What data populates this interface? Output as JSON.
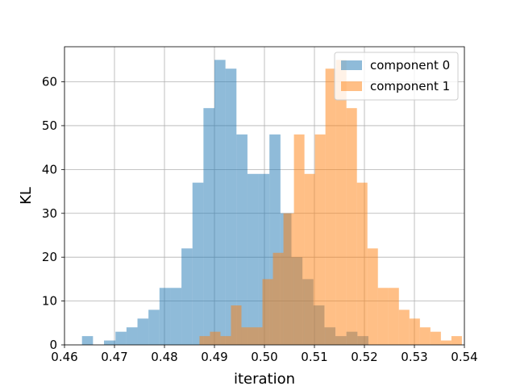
{
  "chart_data": {
    "type": "histogram",
    "title": "",
    "xlabel": "iteration",
    "ylabel": "KL",
    "xlim": [
      0.46,
      0.54
    ],
    "ylim": [
      0,
      68
    ],
    "xticks": [
      0.46,
      0.47,
      0.48,
      0.49,
      0.5,
      0.51,
      0.52,
      0.53,
      0.54
    ],
    "xtick_labels": [
      "0.46",
      "0.47",
      "0.48",
      "0.49",
      "0.50",
      "0.51",
      "0.52",
      "0.53",
      "0.54"
    ],
    "yticks": [
      0,
      10,
      20,
      30,
      40,
      50,
      60
    ],
    "ytick_labels": [
      "0",
      "10",
      "20",
      "30",
      "40",
      "50",
      "60"
    ],
    "grid": true,
    "legend_position": "top-right",
    "series": [
      {
        "name": "component 0",
        "color": "#1f77b4",
        "opacity": 0.5,
        "bins": [
          [
            0.4635,
            0.4657,
            2
          ],
          [
            0.4679,
            0.4702,
            1
          ],
          [
            0.4702,
            0.4724,
            3
          ],
          [
            0.4724,
            0.4746,
            4
          ],
          [
            0.4746,
            0.4768,
            6
          ],
          [
            0.4768,
            0.479,
            8
          ],
          [
            0.479,
            0.4812,
            13
          ],
          [
            0.4812,
            0.4834,
            13
          ],
          [
            0.4834,
            0.4856,
            22
          ],
          [
            0.4856,
            0.4878,
            37
          ],
          [
            0.4878,
            0.49,
            54
          ],
          [
            0.49,
            0.4922,
            65
          ],
          [
            0.4922,
            0.4944,
            63
          ],
          [
            0.4944,
            0.4966,
            48
          ],
          [
            0.4966,
            0.4988,
            39
          ],
          [
            0.4988,
            0.501,
            39
          ],
          [
            0.501,
            0.5032,
            48
          ],
          [
            0.5032,
            0.5054,
            30
          ],
          [
            0.5054,
            0.5076,
            20
          ],
          [
            0.5076,
            0.5098,
            15
          ],
          [
            0.5098,
            0.512,
            9
          ],
          [
            0.512,
            0.5142,
            4
          ],
          [
            0.5142,
            0.5164,
            2
          ],
          [
            0.5164,
            0.5186,
            3
          ],
          [
            0.5186,
            0.5208,
            2
          ]
        ]
      },
      {
        "name": "component 1",
        "color": "#ff7f0e",
        "opacity": 0.5,
        "bins": [
          [
            0.487,
            0.4891,
            2
          ],
          [
            0.4891,
            0.4912,
            3
          ],
          [
            0.4912,
            0.4933,
            2
          ],
          [
            0.4933,
            0.4954,
            9
          ],
          [
            0.4954,
            0.4975,
            4
          ],
          [
            0.4975,
            0.4996,
            4
          ],
          [
            0.4996,
            0.5017,
            15
          ],
          [
            0.5017,
            0.5038,
            21
          ],
          [
            0.5038,
            0.5059,
            30
          ],
          [
            0.5059,
            0.508,
            48
          ],
          [
            0.508,
            0.5101,
            39
          ],
          [
            0.5101,
            0.5122,
            48
          ],
          [
            0.5122,
            0.5143,
            63
          ],
          [
            0.5143,
            0.5164,
            65
          ],
          [
            0.5164,
            0.5185,
            54
          ],
          [
            0.5185,
            0.5206,
            37
          ],
          [
            0.5206,
            0.5227,
            22
          ],
          [
            0.5227,
            0.5248,
            13
          ],
          [
            0.5248,
            0.5269,
            13
          ],
          [
            0.5269,
            0.529,
            8
          ],
          [
            0.529,
            0.5311,
            6
          ],
          [
            0.5311,
            0.5332,
            4
          ],
          [
            0.5332,
            0.5353,
            3
          ],
          [
            0.5353,
            0.5374,
            1
          ],
          [
            0.5374,
            0.5395,
            2
          ]
        ]
      }
    ]
  }
}
